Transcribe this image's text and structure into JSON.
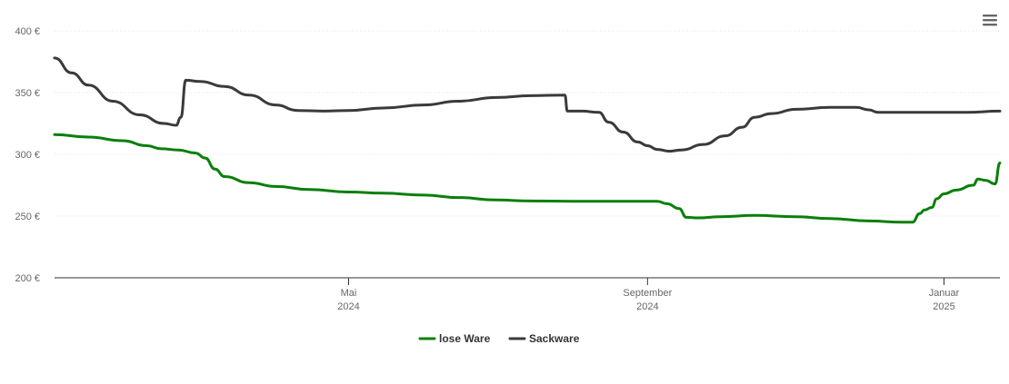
{
  "chart_data": {
    "type": "line",
    "title": "",
    "xlabel": "",
    "ylabel": "",
    "ylim": [
      200,
      400
    ],
    "y_ticks": [
      {
        "value": 200,
        "label": "200 €"
      },
      {
        "value": 250,
        "label": "250 €"
      },
      {
        "value": 300,
        "label": "300 €"
      },
      {
        "value": 350,
        "label": "350 €"
      },
      {
        "value": 400,
        "label": "400 €"
      }
    ],
    "xlim": [
      "2024-01-01",
      "2025-01-24"
    ],
    "x_ticks": [
      {
        "date": "2024-05-01",
        "line1": "Mai",
        "line2": "2024"
      },
      {
        "date": "2024-09-01",
        "line1": "September",
        "line2": "2024"
      },
      {
        "date": "2025-01-01",
        "line1": "Januar",
        "line2": "2025"
      }
    ],
    "grid": true,
    "legend_position": "bottom-center",
    "series": [
      {
        "name": "lose Ware",
        "color": "#0a7f0a",
        "points": [
          [
            "2024-01-01",
            316
          ],
          [
            "2024-01-15",
            314
          ],
          [
            "2024-01-29",
            311
          ],
          [
            "2024-02-08",
            307
          ],
          [
            "2024-02-14",
            304.5
          ],
          [
            "2024-02-21",
            303.5
          ],
          [
            "2024-02-28",
            301
          ],
          [
            "2024-03-03",
            297
          ],
          [
            "2024-03-07",
            288
          ],
          [
            "2024-03-11",
            282
          ],
          [
            "2024-03-21",
            277
          ],
          [
            "2024-04-01",
            274
          ],
          [
            "2024-04-15",
            271.5
          ],
          [
            "2024-05-01",
            269.5
          ],
          [
            "2024-05-15",
            268.5
          ],
          [
            "2024-06-01",
            267
          ],
          [
            "2024-06-15",
            265
          ],
          [
            "2024-07-01",
            263
          ],
          [
            "2024-07-15",
            262.2
          ],
          [
            "2024-08-01",
            262
          ],
          [
            "2024-08-15",
            262
          ],
          [
            "2024-09-01",
            262
          ],
          [
            "2024-09-05",
            262
          ],
          [
            "2024-09-09",
            260
          ],
          [
            "2024-09-14",
            256
          ],
          [
            "2024-09-17",
            249
          ],
          [
            "2024-09-22",
            248.5
          ],
          [
            "2024-10-01",
            249.5
          ],
          [
            "2024-10-15",
            250.5
          ],
          [
            "2024-11-01",
            249.5
          ],
          [
            "2024-11-15",
            248
          ],
          [
            "2024-12-01",
            246
          ],
          [
            "2024-12-15",
            245
          ],
          [
            "2024-12-19",
            245
          ],
          [
            "2024-12-22",
            252
          ],
          [
            "2024-12-24",
            255
          ],
          [
            "2024-12-27",
            257
          ],
          [
            "2024-12-29",
            264
          ],
          [
            "2025-01-01",
            268
          ],
          [
            "2025-01-06",
            271
          ],
          [
            "2025-01-13",
            275
          ],
          [
            "2025-01-15",
            280
          ],
          [
            "2025-01-18",
            279
          ],
          [
            "2025-01-22",
            276
          ],
          [
            "2025-01-24",
            293
          ]
        ]
      },
      {
        "name": "Sackware",
        "color": "#3a3a3a",
        "points": [
          [
            "2024-01-01",
            378
          ],
          [
            "2024-01-08",
            366
          ],
          [
            "2024-01-15",
            356
          ],
          [
            "2024-01-25",
            343
          ],
          [
            "2024-02-05",
            332
          ],
          [
            "2024-02-15",
            325
          ],
          [
            "2024-02-20",
            323.5
          ],
          [
            "2024-02-22",
            330
          ],
          [
            "2024-02-24",
            360
          ],
          [
            "2024-03-01",
            359
          ],
          [
            "2024-03-11",
            355
          ],
          [
            "2024-03-21",
            348
          ],
          [
            "2024-04-01",
            340
          ],
          [
            "2024-04-10",
            335.5
          ],
          [
            "2024-04-21",
            335
          ],
          [
            "2024-05-01",
            335.5
          ],
          [
            "2024-05-15",
            337.5
          ],
          [
            "2024-06-01",
            340
          ],
          [
            "2024-06-15",
            343
          ],
          [
            "2024-07-01",
            346
          ],
          [
            "2024-07-15",
            347.5
          ],
          [
            "2024-07-29",
            348
          ],
          [
            "2024-07-30",
            335
          ],
          [
            "2024-08-05",
            335
          ],
          [
            "2024-08-12",
            334
          ],
          [
            "2024-08-16",
            326
          ],
          [
            "2024-08-22",
            318
          ],
          [
            "2024-08-28",
            310
          ],
          [
            "2024-09-01",
            307
          ],
          [
            "2024-09-05",
            304
          ],
          [
            "2024-09-10",
            302.5
          ],
          [
            "2024-09-15",
            303.5
          ],
          [
            "2024-09-24",
            308
          ],
          [
            "2024-10-03",
            315
          ],
          [
            "2024-10-10",
            322
          ],
          [
            "2024-10-15",
            330
          ],
          [
            "2024-10-22",
            333
          ],
          [
            "2024-11-01",
            336.5
          ],
          [
            "2024-11-15",
            338
          ],
          [
            "2024-11-26",
            338
          ],
          [
            "2024-12-01",
            336
          ],
          [
            "2024-12-05",
            334
          ],
          [
            "2024-12-15",
            334
          ],
          [
            "2025-01-01",
            334
          ],
          [
            "2025-01-10",
            334
          ],
          [
            "2025-01-24",
            335
          ]
        ]
      }
    ]
  }
}
